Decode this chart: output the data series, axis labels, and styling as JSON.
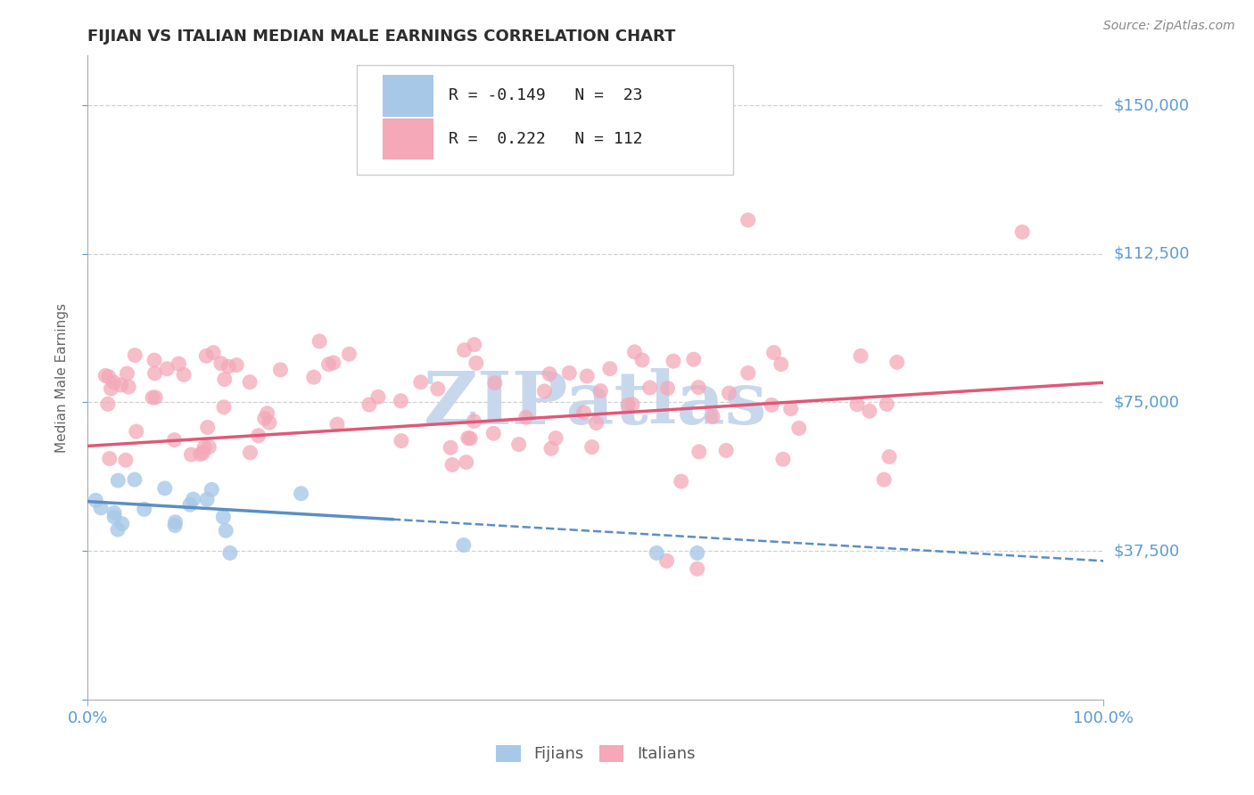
{
  "title": "FIJIAN VS ITALIAN MEDIAN MALE EARNINGS CORRELATION CHART",
  "source": "Source: ZipAtlas.com",
  "ylabel": "Median Male Earnings",
  "xlim": [
    0,
    1
  ],
  "ylim": [
    0,
    162500
  ],
  "background_color": "#ffffff",
  "grid_color": "#cccccc",
  "title_color": "#2d2d2d",
  "axis_color": "#5b9bd5",
  "watermark_text": "ZIPatlas",
  "watermark_color": "#c8d8ec",
  "fijian_color": "#a8c8e8",
  "italian_color": "#f4a8b8",
  "fijian_line_color": "#5b8ec4",
  "italian_line_color": "#e05878",
  "fijian_line_solid_end": 0.3,
  "fijian_line_intercept": 50000,
  "fijian_line_slope": -15000,
  "italian_line_intercept": 64000,
  "italian_line_slope": 16000
}
